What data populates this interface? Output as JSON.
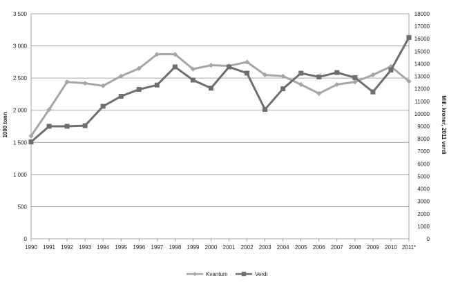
{
  "chart_data": {
    "type": "line",
    "title": "",
    "x": [
      "1990",
      "1991",
      "1992",
      "1993",
      "1994",
      "1995",
      "1996",
      "1997",
      "1998",
      "1999",
      "2000",
      "2001",
      "2002",
      "2003",
      "2004",
      "2005",
      "2006",
      "2007",
      "2008",
      "2009",
      "2010",
      "2011*"
    ],
    "ylabel_left": "1000 tonn",
    "ylabel_right": "Mill. kroner, 2011 verdi",
    "ylim_left": [
      0,
      3500
    ],
    "ylim_right": [
      0,
      18000
    ],
    "yticks_left": [
      "0",
      "500",
      "1 000",
      "1 500",
      "2 000",
      "2 500",
      "3 000",
      "3 500"
    ],
    "yticks_right": [
      "0",
      "1000",
      "2000",
      "3000",
      "4000",
      "5000",
      "6000",
      "7000",
      "8000",
      "9000",
      "10000",
      "11000",
      "12000",
      "13000",
      "14000",
      "15000",
      "16000",
      "17000",
      "18000"
    ],
    "grid": true,
    "legend_position": "bottom",
    "series": [
      {
        "name": "Kvantum",
        "axis": "left",
        "marker": "diamond",
        "color": "#a6a6a6",
        "values": [
          1600,
          2010,
          2440,
          2420,
          2380,
          2530,
          2650,
          2870,
          2870,
          2640,
          2700,
          2690,
          2750,
          2550,
          2530,
          2400,
          2260,
          2400,
          2440,
          2550,
          2680,
          2450
        ]
      },
      {
        "name": "Verdi",
        "axis": "right",
        "marker": "square",
        "color": "#6e6e6e",
        "values": [
          7750,
          9000,
          9000,
          9050,
          10600,
          11400,
          11950,
          12300,
          13750,
          12700,
          12050,
          13750,
          13250,
          10350,
          12000,
          13250,
          12950,
          13300,
          12900,
          11750,
          13500,
          16100
        ]
      }
    ]
  }
}
